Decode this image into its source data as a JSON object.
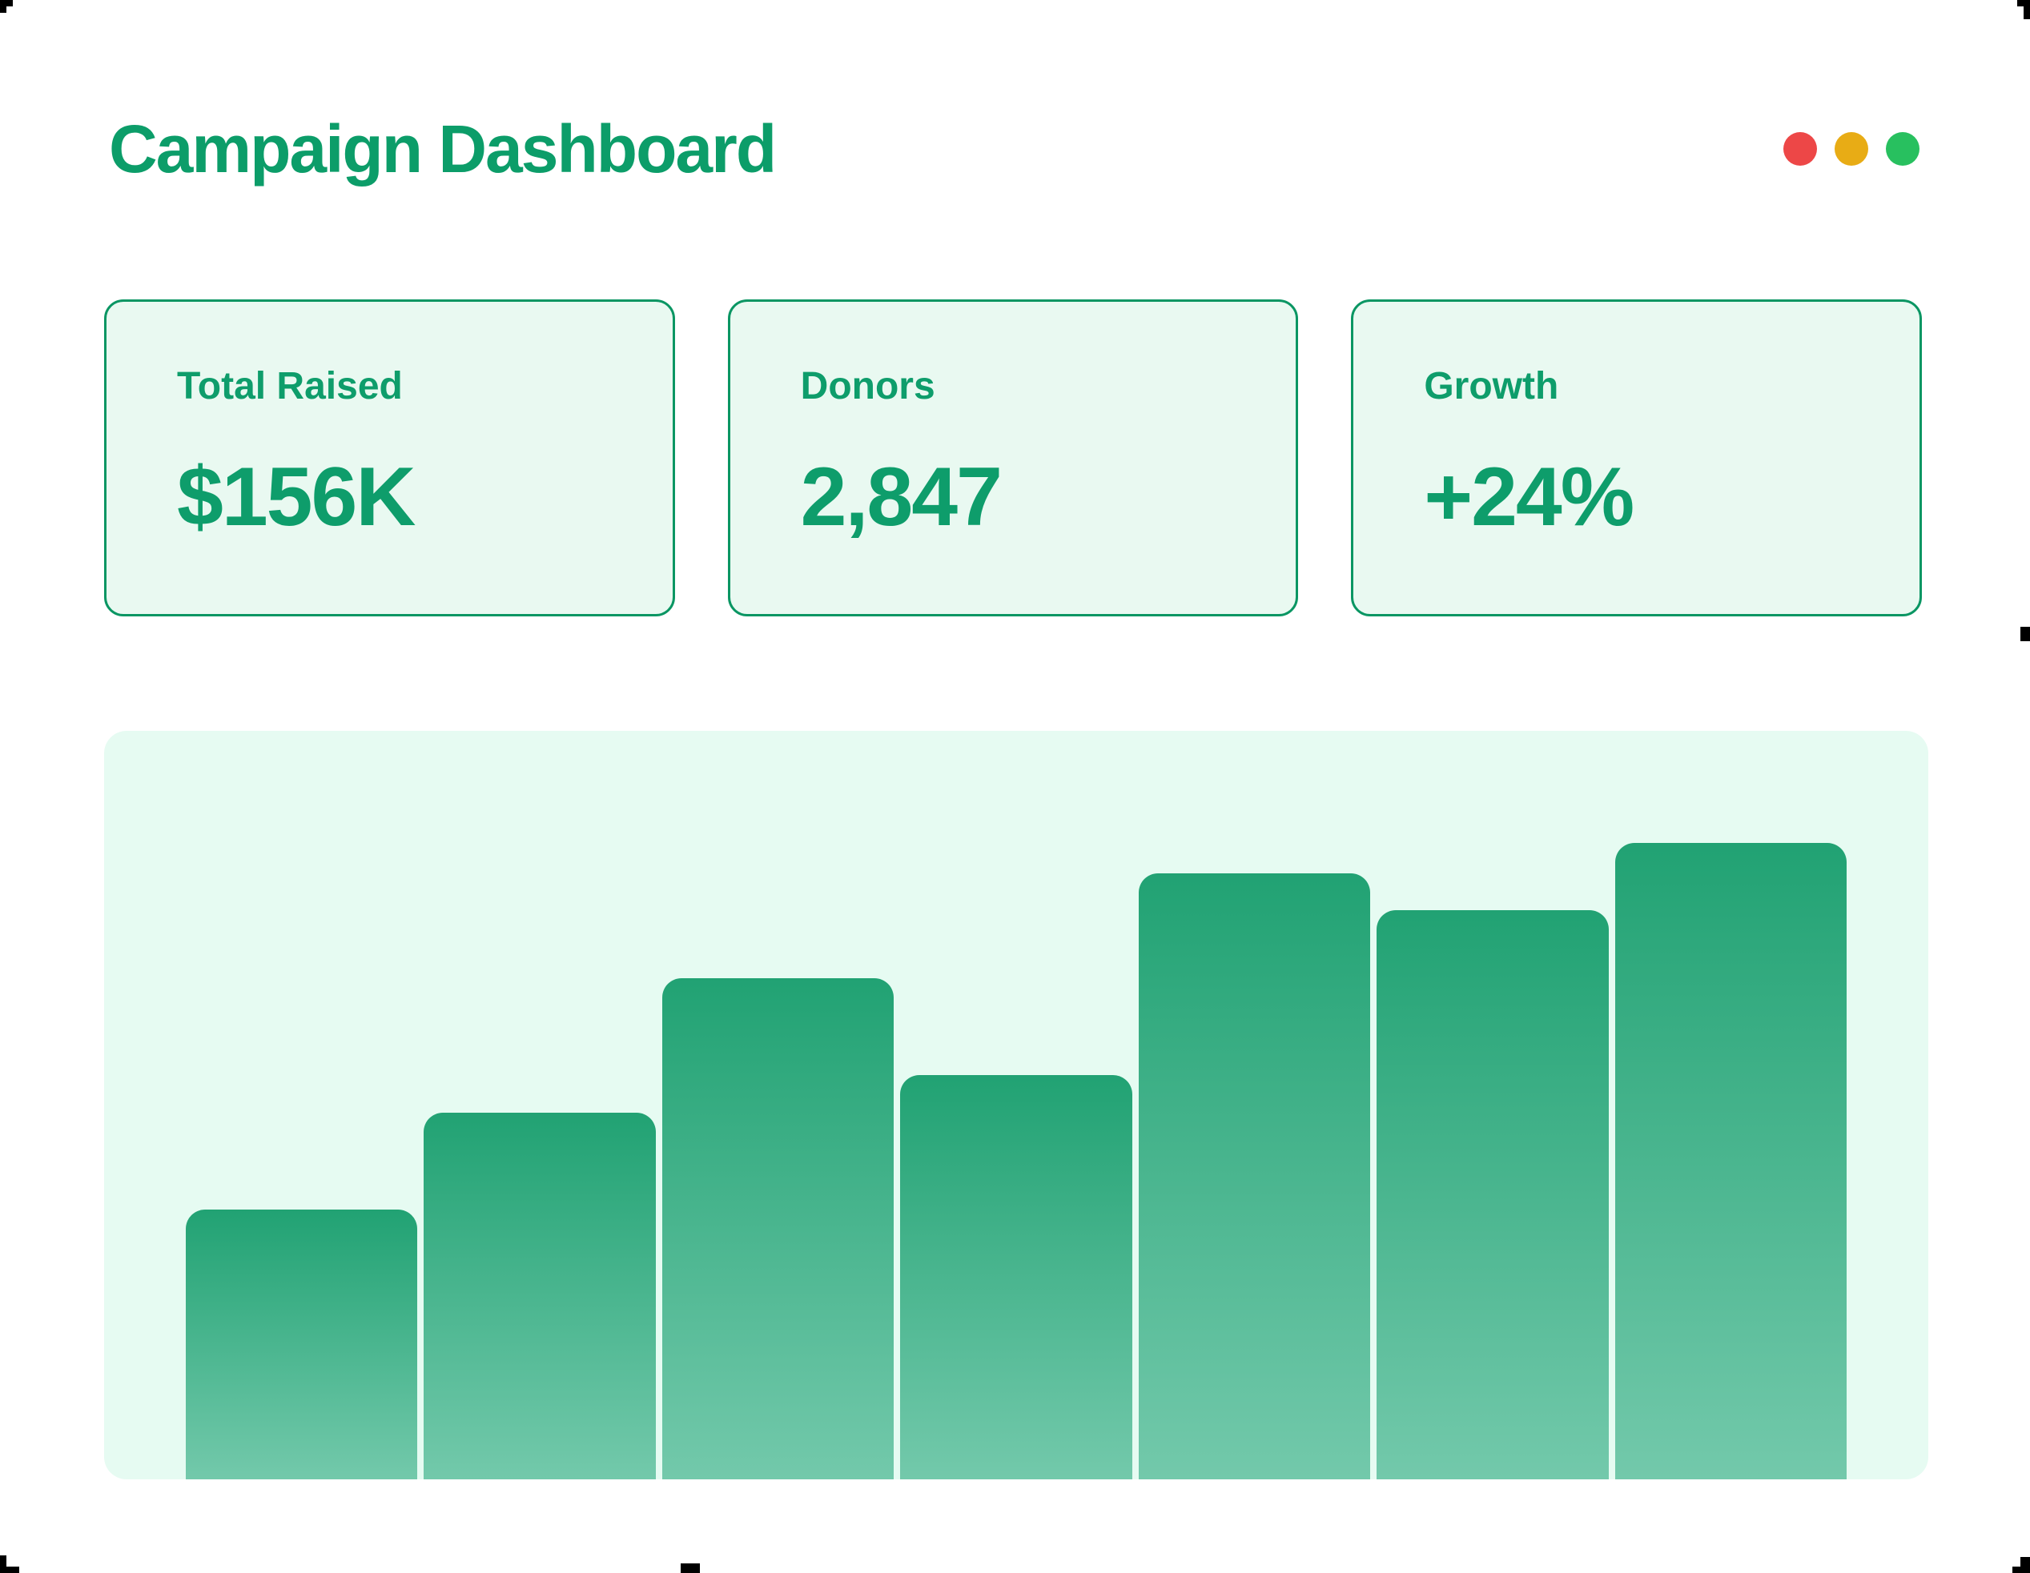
{
  "window": {
    "title": "Campaign Dashboard",
    "traffic_lights": [
      {
        "name": "close",
        "color": "#ED4747"
      },
      {
        "name": "minimize",
        "color": "#E8AC15"
      },
      {
        "name": "maximize",
        "color": "#28C05F"
      }
    ]
  },
  "stats": [
    {
      "label": "Total Raised",
      "value": "$156K"
    },
    {
      "label": "Donors",
      "value": "2,847"
    },
    {
      "label": "Growth",
      "value": "+24%"
    }
  ],
  "chart_data": {
    "type": "bar",
    "title": "",
    "xlabel": "",
    "ylabel": "",
    "categories": [
      "",
      "",
      "",
      "",
      "",
      "",
      ""
    ],
    "values": [
      36,
      49,
      67,
      54,
      81,
      76,
      85
    ],
    "value_unit": "relative bar height, percent of plot height (no axis labels shown)",
    "axes_visible": false,
    "grid": false,
    "legend": false,
    "bar_gradient_top": "#21A273",
    "bar_gradient_bottom": "#73C9AB",
    "plot_background": "#E6FBF2"
  },
  "colors": {
    "accent_green": "#0C9D69",
    "card_background": "#E9F9F1",
    "card_border": "#0A9663",
    "page_background": "#FFFFFF",
    "crop_mark": "#000000"
  }
}
